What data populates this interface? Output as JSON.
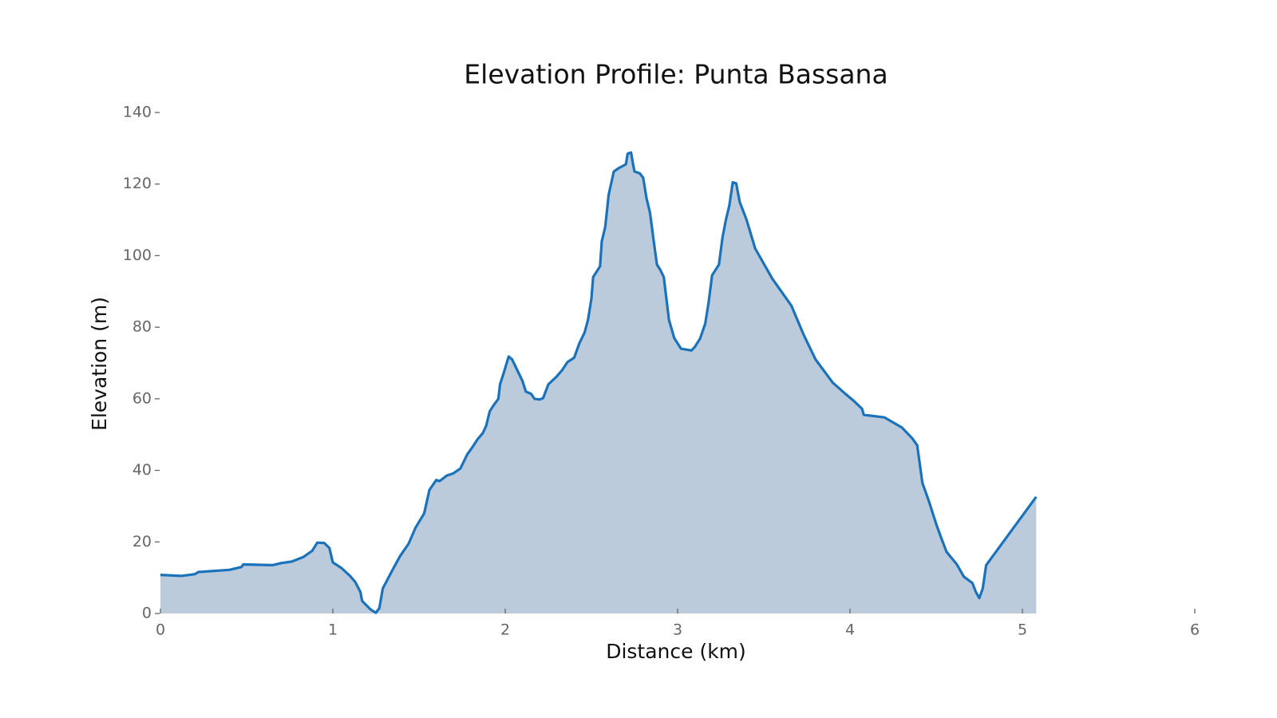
{
  "chart_data": {
    "type": "area",
    "title": "Elevation Profile: Punta Bassana",
    "xlabel": "Distance (km)",
    "ylabel": "Elevation (m)",
    "xlim": [
      0,
      6
    ],
    "xticks": [
      0,
      1,
      2,
      3,
      4,
      5,
      6
    ],
    "ylim": [
      0,
      140
    ],
    "yticks": [
      0,
      20,
      40,
      60,
      80,
      100,
      120,
      140
    ],
    "grid": false,
    "series": [
      {
        "name": "Elevation",
        "color": "#1a72bb",
        "fill": "#bccbdc",
        "x": [
          0,
          0.12,
          0.2,
          0.22,
          0.4,
          0.47,
          0.48,
          0.65,
          0.7,
          0.76,
          0.83,
          0.88,
          0.91,
          0.95,
          0.98,
          1.0,
          1.05,
          1.1,
          1.13,
          1.16,
          1.17,
          1.22,
          1.25,
          1.27,
          1.29,
          1.35,
          1.39,
          1.44,
          1.48,
          1.53,
          1.56,
          1.6,
          1.62,
          1.66,
          1.7,
          1.74,
          1.78,
          1.81,
          1.84,
          1.87,
          1.89,
          1.91,
          1.93,
          1.96,
          1.97,
          1.99,
          2.02,
          2.04,
          2.1,
          2.12,
          2.15,
          2.17,
          2.2,
          2.22,
          2.25,
          2.3,
          2.33,
          2.36,
          2.4,
          2.43,
          2.46,
          2.48,
          2.5,
          2.51,
          2.55,
          2.56,
          2.58,
          2.6,
          2.63,
          2.66,
          2.7,
          2.71,
          2.73,
          2.74,
          2.75,
          2.78,
          2.8,
          2.82,
          2.84,
          2.86,
          2.88,
          2.9,
          2.92,
          2.95,
          2.98,
          3.02,
          3.08,
          3.1,
          3.13,
          3.16,
          3.18,
          3.2,
          3.24,
          3.26,
          3.28,
          3.3,
          3.32,
          3.34,
          3.36,
          3.4,
          3.45,
          3.55,
          3.66,
          3.73,
          3.8,
          3.9,
          3.97,
          4.02,
          4.07,
          4.08,
          4.2,
          4.3,
          4.36,
          4.39,
          4.42,
          4.46,
          4.5,
          4.53,
          4.56,
          4.62,
          4.66,
          4.71,
          4.73,
          4.75,
          4.77,
          4.79,
          5.08
        ],
        "values": [
          10.8,
          10.5,
          11,
          11.6,
          12.2,
          13,
          13.7,
          13.5,
          14.1,
          14.5,
          15.8,
          17.5,
          19.8,
          19.7,
          18.3,
          14.3,
          12.7,
          10.5,
          8.8,
          6,
          3.5,
          1.1,
          0.2,
          1.5,
          7,
          12.5,
          16,
          19.5,
          24,
          28,
          34.5,
          37.3,
          37,
          38.5,
          39.2,
          40.5,
          44.5,
          46.5,
          48.7,
          50.4,
          52.5,
          56.5,
          58,
          60,
          64,
          67,
          71.8,
          71,
          65,
          62,
          61.4,
          60,
          59.8,
          60.2,
          64,
          66.3,
          68,
          70.2,
          71.5,
          75.5,
          78.5,
          82,
          88,
          94,
          97,
          104,
          108,
          117,
          123.5,
          124.5,
          125.5,
          128.5,
          128.8,
          126,
          123.5,
          123,
          121.8,
          116,
          112,
          104.5,
          97.5,
          96,
          94,
          82,
          77,
          74,
          73.5,
          74.5,
          76.8,
          81,
          87,
          94.5,
          97.5,
          105,
          110,
          114,
          120.5,
          120.2,
          115,
          110,
          102,
          93.5,
          86,
          78,
          71,
          64.5,
          61.5,
          59.5,
          57.2,
          55.5,
          54.8,
          52,
          49,
          47,
          36.5,
          31,
          25,
          21,
          17.2,
          13.7,
          10.3,
          8.5,
          6,
          4.3,
          7,
          13.5,
          32.6
        ]
      }
    ]
  }
}
